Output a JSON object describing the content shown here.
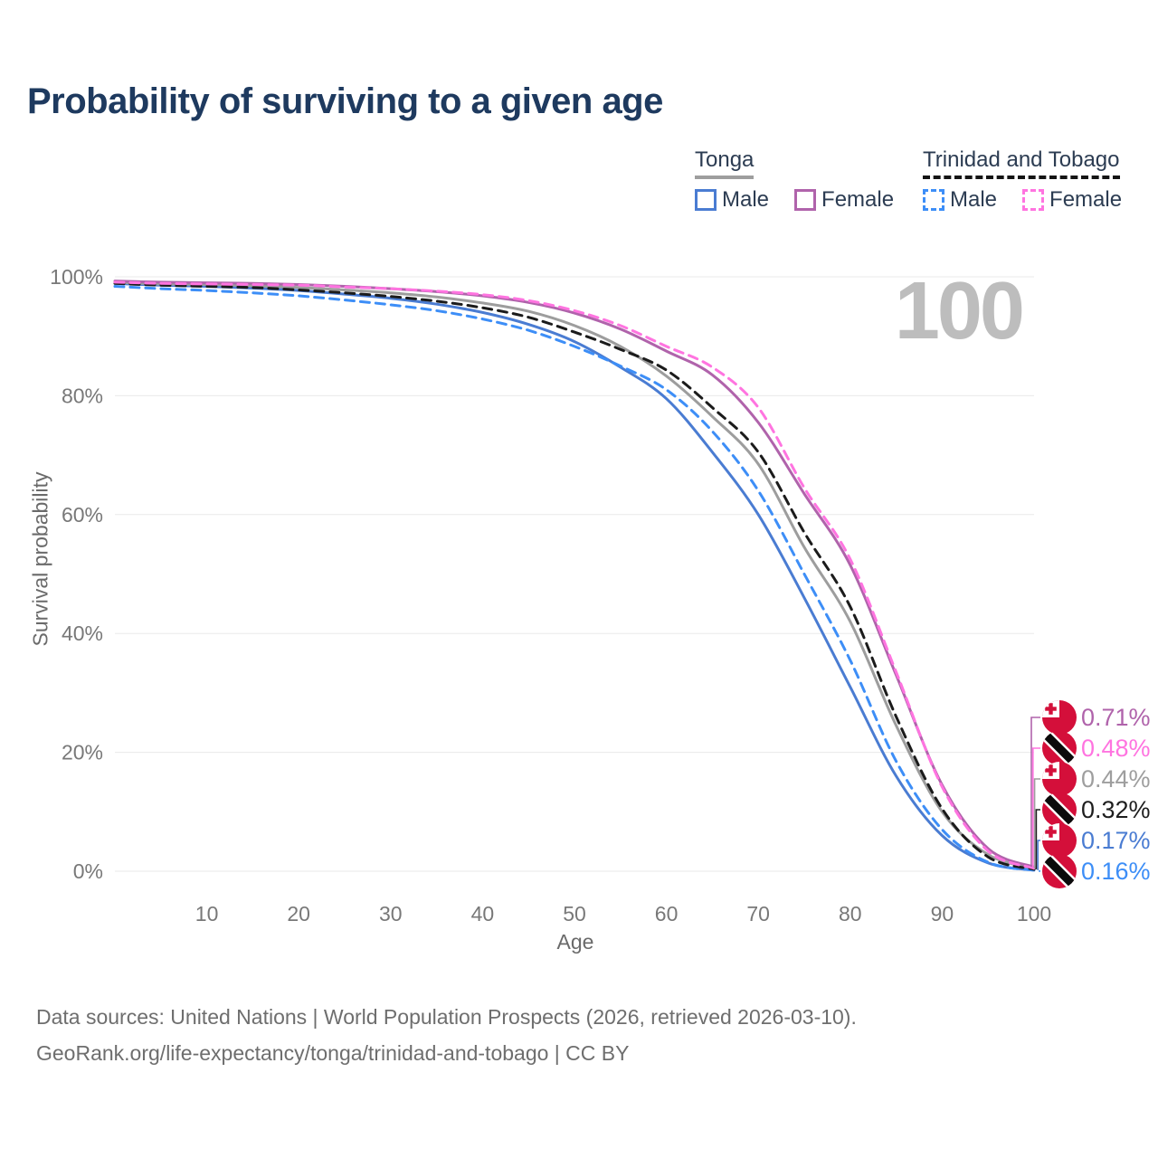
{
  "header": {
    "title": "Probability of surviving to a given age"
  },
  "legend": {
    "groups": [
      {
        "title": "Tonga",
        "underline_style": "solid",
        "underline_color": "#9e9e9e",
        "items": [
          {
            "label": "Male",
            "swatch_color": "#4a7cd2",
            "line_style": "solid"
          },
          {
            "label": "Female",
            "swatch_color": "#b063ab",
            "line_style": "solid"
          }
        ]
      },
      {
        "title": "Trinidad and Tobago",
        "underline_style": "dashed",
        "underline_color": "#141414",
        "items": [
          {
            "label": "Male",
            "swatch_color": "#3d8ef7",
            "line_style": "dashed"
          },
          {
            "label": "Female",
            "swatch_color": "#ff74e0",
            "line_style": "dashed"
          }
        ]
      }
    ]
  },
  "chart_data": {
    "type": "line",
    "title": "Probability of surviving to a given age",
    "xlabel": "Age",
    "ylabel": "Survival probability",
    "xlim": [
      0,
      100
    ],
    "ylim": [
      0,
      100
    ],
    "x_ticks": [
      10,
      20,
      30,
      40,
      50,
      60,
      70,
      80,
      90,
      100
    ],
    "y_ticks": [
      0,
      20,
      40,
      60,
      80,
      100
    ],
    "y_tick_labels": [
      "0%",
      "20%",
      "40%",
      "60%",
      "80%",
      "100%"
    ],
    "grid": "horizontal",
    "legend_position": "top-right",
    "age_counter": "100",
    "x": [
      0,
      5,
      10,
      15,
      20,
      25,
      30,
      35,
      40,
      45,
      50,
      55,
      60,
      65,
      70,
      75,
      80,
      85,
      90,
      95,
      100
    ],
    "series": [
      {
        "id": "tonga-male",
        "name": "Tonga Male",
        "country": "Tonga",
        "sex": "Male",
        "color": "#4a7cd2",
        "line_style": "solid",
        "end_label": "0.17%",
        "values": [
          98.9,
          98.6,
          98.4,
          98.1,
          97.7,
          97.1,
          96.4,
          95.4,
          94.0,
          92.0,
          89.1,
          84.8,
          79.5,
          70.5,
          60.0,
          46.0,
          31.0,
          16.0,
          6.0,
          1.4,
          0.17
        ]
      },
      {
        "id": "tonga-total",
        "name": "Tonga",
        "country": "Tonga",
        "sex": "Both",
        "color": "#9d9d9d",
        "line_style": "solid",
        "end_label": "0.44%",
        "values": [
          99.1,
          98.8,
          98.7,
          98.5,
          98.2,
          97.8,
          97.3,
          96.6,
          95.6,
          94.2,
          91.8,
          88.3,
          83.3,
          76.5,
          68.5,
          54.5,
          42.0,
          24.5,
          10.0,
          2.8,
          0.44
        ]
      },
      {
        "id": "tonga-female",
        "name": "Tonga Female",
        "country": "Tonga",
        "sex": "Female",
        "color": "#b063ab",
        "line_style": "solid",
        "end_label": "0.71%",
        "values": [
          99.3,
          99.1,
          99.0,
          98.9,
          98.7,
          98.4,
          98.0,
          97.5,
          96.8,
          95.7,
          93.9,
          91.2,
          87.5,
          83.5,
          75.5,
          63.5,
          51.5,
          33.0,
          14.5,
          3.8,
          0.71
        ]
      },
      {
        "id": "tt-male",
        "name": "Trinidad and Tobago Male",
        "country": "Trinidad and Tobago",
        "sex": "Male",
        "color": "#3d8ef7",
        "line_style": "dashed",
        "end_label": "0.16%",
        "values": [
          98.4,
          98.0,
          97.7,
          97.3,
          96.8,
          96.1,
          95.3,
          94.3,
          92.9,
          91.0,
          88.3,
          85.0,
          81.0,
          74.0,
          64.0,
          50.0,
          35.5,
          18.5,
          7.0,
          1.5,
          0.16
        ]
      },
      {
        "id": "tt-total",
        "name": "Trinidad and Tobago",
        "country": "Trinidad and Tobago",
        "sex": "Both",
        "color": "#1b1b1b",
        "line_style": "dashed",
        "end_label": "0.32%",
        "values": [
          98.9,
          98.6,
          98.4,
          98.2,
          97.8,
          97.3,
          96.7,
          95.9,
          94.8,
          93.2,
          90.7,
          87.8,
          84.3,
          78.0,
          70.5,
          57.0,
          44.5,
          26.0,
          10.5,
          2.4,
          0.32
        ]
      },
      {
        "id": "tt-female",
        "name": "Trinidad and Tobago Female",
        "country": "Trinidad and Tobago",
        "sex": "Female",
        "color": "#ff74e0",
        "line_style": "dashed",
        "end_label": "0.48%",
        "values": [
          99.1,
          98.9,
          98.8,
          98.7,
          98.6,
          98.3,
          98.0,
          97.6,
          97.0,
          96.0,
          94.3,
          91.8,
          88.3,
          84.8,
          78.0,
          64.5,
          52.5,
          33.5,
          14.2,
          3.4,
          0.48
        ]
      }
    ],
    "end_labels": [
      {
        "text": "0.71%",
        "series": "tonga-female",
        "flag": "tonga",
        "color": "#b063ab"
      },
      {
        "text": "0.48%",
        "series": "tt-female",
        "flag": "trinidad-and-tobago",
        "color": "#ff74e0"
      },
      {
        "text": "0.44%",
        "series": "tonga-total",
        "flag": "tonga",
        "color": "#9e9e9e"
      },
      {
        "text": "0.32%",
        "series": "tt-total",
        "flag": "trinidad-and-tobago",
        "color": "#1e1e1e"
      },
      {
        "text": "0.17%",
        "series": "tonga-male",
        "flag": "tonga",
        "color": "#4a7cd2"
      },
      {
        "text": "0.16%",
        "series": "tt-male",
        "flag": "trinidad-and-tobago",
        "color": "#3d8ef7"
      }
    ]
  },
  "footer": {
    "line1": "Data sources: United Nations | World Population Prospects (2026, retrieved 2026-03-10).",
    "line2": "GeoRank.org/life-expectancy/tonga/trinidad-and-tobago | CC BY"
  }
}
